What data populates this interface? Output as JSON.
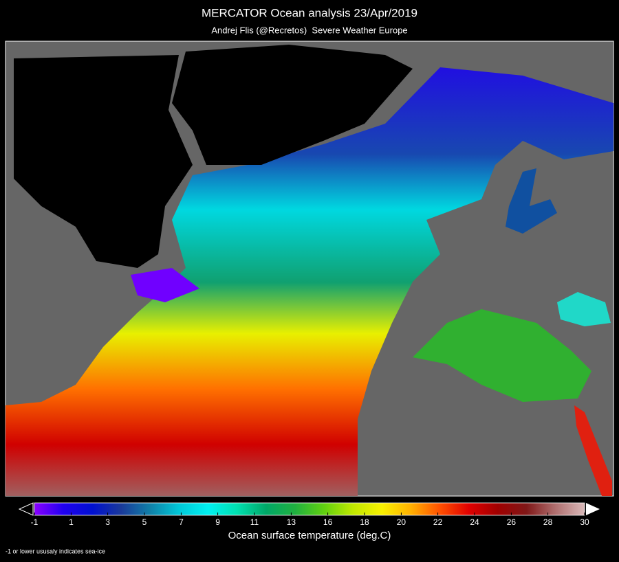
{
  "header": {
    "title": "MERCATOR Ocean analysis 23/Apr/2019",
    "subtitle": "Andrej Flis (@Recretos)  Severe Weather Europe"
  },
  "colorbar": {
    "label": "Ocean surface temperature (deg.C)",
    "lim": [
      -1,
      30
    ],
    "ticks": [
      -1,
      {
        "value": 1.07,
        "label": "1"
      },
      {
        "value": 3.13,
        "label": "3"
      },
      {
        "value": 5.2,
        "label": "5"
      },
      {
        "value": 7.27,
        "label": "7"
      },
      {
        "value": 9.33,
        "label": "9"
      },
      {
        "value": 11.4,
        "label": "11"
      },
      {
        "value": 13.47,
        "label": "13"
      },
      {
        "value": 15.53,
        "label": "16"
      },
      {
        "value": 17.6,
        "label": "18"
      },
      {
        "value": 19.67,
        "label": "20"
      },
      {
        "value": 21.73,
        "label": "22"
      },
      {
        "value": 23.8,
        "label": "24"
      },
      {
        "value": 25.87,
        "label": "26"
      },
      {
        "value": 27.93,
        "label": "28"
      },
      30
    ],
    "colors": [
      "#8a00ff",
      "#2000f0",
      "#0010d0",
      "#1a3a9a",
      "#1080a8",
      "#00c8d8",
      "#00f0f0",
      "#00e0b0",
      "#00a868",
      "#20b040",
      "#60d010",
      "#c0e800",
      "#f8f000",
      "#ffb000",
      "#ff5000",
      "#e00000",
      "#a00000",
      "#801818",
      "#b07070",
      "#d8b8b8"
    ],
    "extend": "both"
  },
  "footnote": "-1 or lower ususaly indicates sea-ice"
}
